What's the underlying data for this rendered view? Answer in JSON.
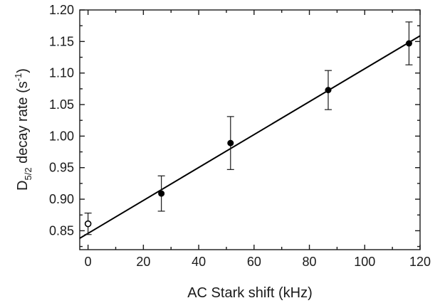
{
  "chart_data": {
    "type": "scatter",
    "title": "",
    "xlabel": "AC Stark shift (kHz)",
    "ylabel": {
      "base": "D",
      "subscript": "5/2",
      "text": " decay rate (s",
      "superscript": "-1",
      "close": ")"
    },
    "xlim": [
      -3,
      120
    ],
    "ylim": [
      0.82,
      1.2
    ],
    "x_ticks": [
      0,
      20,
      40,
      60,
      80,
      100,
      120
    ],
    "y_ticks": [
      0.85,
      0.9,
      0.95,
      1.0,
      1.05,
      1.1,
      1.15,
      1.2
    ],
    "x_tick_labels": [
      "0",
      "20",
      "40",
      "60",
      "80",
      "100",
      "120"
    ],
    "y_tick_labels": [
      "0.85",
      "0.90",
      "0.95",
      "1.00",
      "1.05",
      "1.10",
      "1.15",
      "1.20"
    ],
    "grid": false,
    "series": [
      {
        "marker": "open-circle",
        "points": [
          {
            "x": 0,
            "y": 0.861,
            "err": 0.017
          }
        ]
      },
      {
        "marker": "filled-circle",
        "points": [
          {
            "x": 26.5,
            "y": 0.909,
            "err": 0.028
          },
          {
            "x": 51.5,
            "y": 0.989,
            "err": 0.042
          },
          {
            "x": 86.8,
            "y": 1.073,
            "err": 0.031
          },
          {
            "x": 116.0,
            "y": 1.147,
            "err": 0.034
          }
        ]
      }
    ],
    "fit_line": {
      "x": [
        -3,
        120
      ],
      "y": [
        0.838,
        1.159
      ]
    }
  }
}
